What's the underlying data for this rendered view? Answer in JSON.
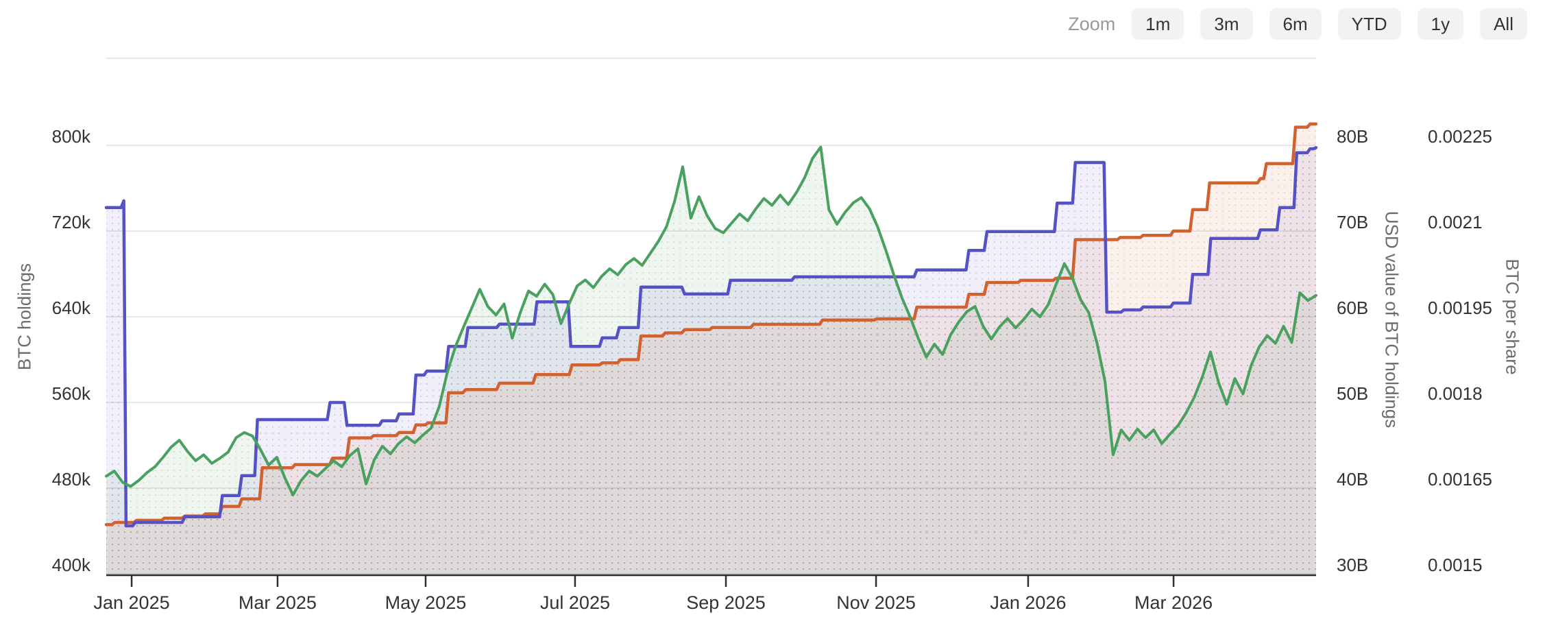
{
  "rangeselector": {
    "zoom_label": "Zoom",
    "buttons": [
      "1m",
      "3m",
      "6m",
      "YTD",
      "1y",
      "All"
    ]
  },
  "chart_data": {
    "type": "line",
    "title": "",
    "grid": true,
    "legend_position": "none",
    "colors": {
      "holdings_line": "#d1612f",
      "per_share_line": "#5552c6",
      "usd_value_line": "#4aa05e",
      "gridline": "#e7e7e7",
      "axis_line": "#2f2f2f",
      "tick_label": "#333333",
      "axis_title": "#6b6b6b"
    },
    "x_axis": {
      "ticks": [
        {
          "f": 0.021,
          "label": "Jan 2025"
        },
        {
          "f": 0.1416,
          "label": "Mar 2025"
        },
        {
          "f": 0.264,
          "label": "May 2025"
        },
        {
          "f": 0.3875,
          "label": "Jul 2025"
        },
        {
          "f": 0.5122,
          "label": "Sep 2025"
        },
        {
          "f": 0.6363,
          "label": "Nov 2025"
        },
        {
          "f": 0.762,
          "label": "Jan 2026"
        },
        {
          "f": 0.8822,
          "label": "Mar 2026"
        }
      ]
    },
    "axes": {
      "left": {
        "title": "BTC holdings",
        "min": 400,
        "max": 881.3,
        "ticks": [
          {
            "v": 400,
            "label": "400k"
          },
          {
            "v": 480,
            "label": "480k"
          },
          {
            "v": 560,
            "label": "560k"
          },
          {
            "v": 640,
            "label": "640k"
          },
          {
            "v": 720,
            "label": "720k"
          },
          {
            "v": 800,
            "label": "800k"
          }
        ]
      },
      "usd": {
        "title": "USD value of BTC holdings",
        "min": 30,
        "max": 90.16,
        "ticks": [
          {
            "v": 30,
            "label": "30B"
          },
          {
            "v": 40,
            "label": "40B"
          },
          {
            "v": 50,
            "label": "50B"
          },
          {
            "v": 60,
            "label": "60B"
          },
          {
            "v": 70,
            "label": "70B"
          },
          {
            "v": 80,
            "label": "80B"
          }
        ]
      },
      "share": {
        "title": "BTC per share",
        "min": 0.0015,
        "max": 0.0024024,
        "ticks": [
          {
            "v": 0.0015,
            "label": "0.0015"
          },
          {
            "v": 0.00165,
            "label": "0.00165"
          },
          {
            "v": 0.0018,
            "label": "0.0018"
          },
          {
            "v": 0.00195,
            "label": "0.00195"
          },
          {
            "v": 0.0021,
            "label": "0.0021"
          },
          {
            "v": 0.00225,
            "label": "0.00225"
          }
        ]
      }
    },
    "series": [
      {
        "name": "BTC holdings",
        "axis": "left",
        "render": "step",
        "unit": "k BTC",
        "points": [
          [
            0,
            446
          ],
          [
            0.007,
            448
          ],
          [
            0.025,
            450
          ],
          [
            0.048,
            452
          ],
          [
            0.065,
            454
          ],
          [
            0.082,
            456
          ],
          [
            0.096,
            463
          ],
          [
            0.112,
            470
          ],
          [
            0.129,
            499
          ],
          [
            0.156,
            502
          ],
          [
            0.187,
            508
          ],
          [
            0.201,
            527
          ],
          [
            0.221,
            529
          ],
          [
            0.242,
            532
          ],
          [
            0.256,
            539
          ],
          [
            0.266,
            541
          ],
          [
            0.283,
            569
          ],
          [
            0.297,
            572
          ],
          [
            0.325,
            578
          ],
          [
            0.355,
            586
          ],
          [
            0.385,
            595
          ],
          [
            0.41,
            597
          ],
          [
            0.425,
            600
          ],
          [
            0.442,
            622
          ],
          [
            0.462,
            625
          ],
          [
            0.478,
            628
          ],
          [
            0.501,
            630
          ],
          [
            0.535,
            633
          ],
          [
            0.592,
            637
          ],
          [
            0.637,
            638
          ],
          [
            0.67,
            649
          ],
          [
            0.713,
            661
          ],
          [
            0.728,
            672
          ],
          [
            0.756,
            674
          ],
          [
            0.785,
            676
          ],
          [
            0.801,
            712
          ],
          [
            0.838,
            714
          ],
          [
            0.857,
            716
          ],
          [
            0.882,
            720
          ],
          [
            0.898,
            740
          ],
          [
            0.912,
            765
          ],
          [
            0.954,
            769
          ],
          [
            0.959,
            783
          ],
          [
            0.983,
            817
          ],
          [
            0.995,
            820
          ],
          [
            1,
            820
          ]
        ]
      },
      {
        "name": "BTC per share",
        "axis": "share",
        "render": "step",
        "unit": "BTC/share",
        "points": [
          [
            0,
            0.002141
          ],
          [
            0.012,
            0.002141
          ],
          [
            0.0145,
            0.002153
          ],
          [
            0.0164,
            0.001584
          ],
          [
            0.024,
            0.00159
          ],
          [
            0.065,
            0.0016
          ],
          [
            0.096,
            0.001637
          ],
          [
            0.112,
            0.001672
          ],
          [
            0.125,
            0.00177
          ],
          [
            0.185,
            0.0018
          ],
          [
            0.199,
            0.00176
          ],
          [
            0.228,
            0.001768
          ],
          [
            0.242,
            0.00178
          ],
          [
            0.256,
            0.001848
          ],
          [
            0.265,
            0.001855
          ],
          [
            0.283,
            0.001898
          ],
          [
            0.299,
            0.001931
          ],
          [
            0.325,
            0.001937
          ],
          [
            0.356,
            0.001976
          ],
          [
            0.384,
            0.001898
          ],
          [
            0.41,
            0.001913
          ],
          [
            0.424,
            0.001931
          ],
          [
            0.442,
            0.002002
          ],
          [
            0.478,
            0.00199
          ],
          [
            0.516,
            0.002014
          ],
          [
            0.569,
            0.00202
          ],
          [
            0.67,
            0.002032
          ],
          [
            0.713,
            0.002066
          ],
          [
            0.728,
            0.002099
          ],
          [
            0.786,
            0.002149
          ],
          [
            0.801,
            0.00222
          ],
          [
            0.827,
            0.001958
          ],
          [
            0.841,
            0.001962
          ],
          [
            0.857,
            0.001967
          ],
          [
            0.882,
            0.001974
          ],
          [
            0.898,
            0.002024
          ],
          [
            0.913,
            0.002087
          ],
          [
            0.954,
            0.002102
          ],
          [
            0.97,
            0.002141
          ],
          [
            0.984,
            0.002237
          ],
          [
            0.995,
            0.002244
          ],
          [
            1,
            0.002246
          ]
        ]
      },
      {
        "name": "USD value of BTC holdings",
        "axis": "usd",
        "render": "line",
        "unit": "USD billions",
        "x_spacing": "uniform",
        "values": [
          41.4,
          42.0,
          40.7,
          40.2,
          40.9,
          41.8,
          42.5,
          43.6,
          44.8,
          45.6,
          44.3,
          43.2,
          43.9,
          42.9,
          43.5,
          44.2,
          45.9,
          46.5,
          46.1,
          44.5,
          42.7,
          43.6,
          41.2,
          39.2,
          40.9,
          42.0,
          41.4,
          42.3,
          43.2,
          42.5,
          43.8,
          44.6,
          40.5,
          43.3,
          44.9,
          44.0,
          45.2,
          46.0,
          45.3,
          46.2,
          47.0,
          49.5,
          53.5,
          56.5,
          58.8,
          61.0,
          63.2,
          61.2,
          60.2,
          61.5,
          57.5,
          60.5,
          63.0,
          62.4,
          63.8,
          62.6,
          59.2,
          61.5,
          63.6,
          64.3,
          63.4,
          64.7,
          65.6,
          64.9,
          66.1,
          66.8,
          66.0,
          67.4,
          68.8,
          70.5,
          73.5,
          77.5,
          71.5,
          74.0,
          71.8,
          70.3,
          69.8,
          70.9,
          72.0,
          71.2,
          72.6,
          73.8,
          73.0,
          74.2,
          73.1,
          74.5,
          76.2,
          78.5,
          79.8,
          72.5,
          70.8,
          72.2,
          73.3,
          73.9,
          72.6,
          70.5,
          67.8,
          64.9,
          62.2,
          60.0,
          57.5,
          55.3,
          56.8,
          55.6,
          57.9,
          59.4,
          60.6,
          61.2,
          58.9,
          57.4,
          58.8,
          59.8,
          58.7,
          59.7,
          60.9,
          60.0,
          61.4,
          63.8,
          66.2,
          64.5,
          62.0,
          60.5,
          57.0,
          52.5,
          43.9,
          46.8,
          45.6,
          46.9,
          45.9,
          46.8,
          45.2,
          46.3,
          47.3,
          48.8,
          50.6,
          53.0,
          55.9,
          52.3,
          49.8,
          52.8,
          51.0,
          54.3,
          56.5,
          57.8,
          56.9,
          58.9,
          57.0,
          62.8,
          61.9,
          62.5
        ]
      }
    ]
  }
}
